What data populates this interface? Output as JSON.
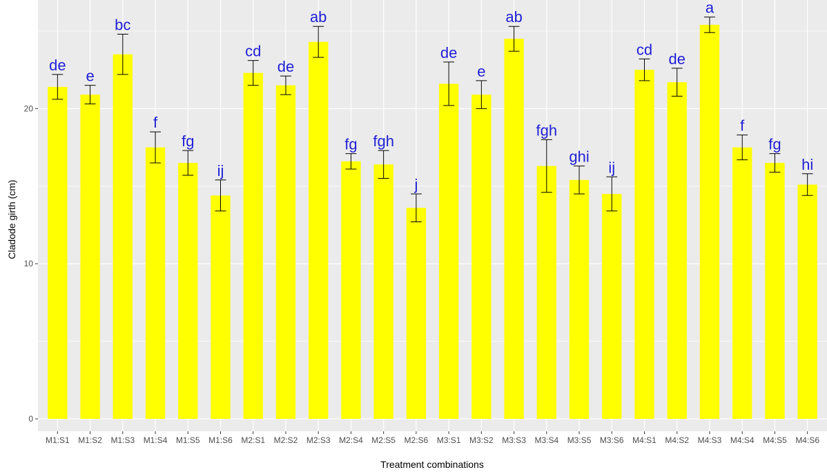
{
  "chart_data": {
    "type": "bar",
    "title": "",
    "xlabel": "Treatment combinations",
    "ylabel": "Cladode girth (cm)",
    "ylim": [
      -0.8,
      27
    ],
    "yticks": [
      0,
      10,
      20
    ],
    "grid": true,
    "colors": {
      "panel_background": "#ebebeb",
      "grid": "#ffffff",
      "bar": "#ffff00",
      "label": "#1f1fd6",
      "errorbar": "#000000"
    },
    "categories": [
      "M1:S1",
      "M1:S2",
      "M1:S3",
      "M1:S4",
      "M1:S5",
      "M1:S6",
      "M2:S1",
      "M2:S2",
      "M2:S3",
      "M2:S4",
      "M2:S5",
      "M2:S6",
      "M3:S1",
      "M3:S2",
      "M3:S3",
      "M3:S4",
      "M3:S5",
      "M3:S6",
      "M4:S1",
      "M4:S2",
      "M4:S3",
      "M4:S4",
      "M4:S5",
      "M4:S6"
    ],
    "values": [
      21.4,
      20.9,
      23.5,
      17.5,
      16.5,
      14.4,
      22.3,
      21.5,
      24.3,
      16.6,
      16.4,
      13.6,
      21.6,
      20.9,
      24.5,
      16.3,
      15.4,
      14.5,
      22.5,
      21.7,
      25.4,
      17.5,
      16.5,
      15.1
    ],
    "errors": [
      0.8,
      0.6,
      1.3,
      1.0,
      0.8,
      1.0,
      0.8,
      0.6,
      1.0,
      0.5,
      0.9,
      0.9,
      1.4,
      0.9,
      0.8,
      1.7,
      0.9,
      1.1,
      0.7,
      0.9,
      0.5,
      0.8,
      0.6,
      0.7
    ],
    "annotations": [
      "de",
      "e",
      "bc",
      "f",
      "fg",
      "ij",
      "cd",
      "de",
      "ab",
      "fg",
      "fgh",
      "j",
      "de",
      "e",
      "ab",
      "fgh",
      "ghi",
      "ij",
      "cd",
      "de",
      "a",
      "f",
      "fg",
      "hi"
    ]
  }
}
